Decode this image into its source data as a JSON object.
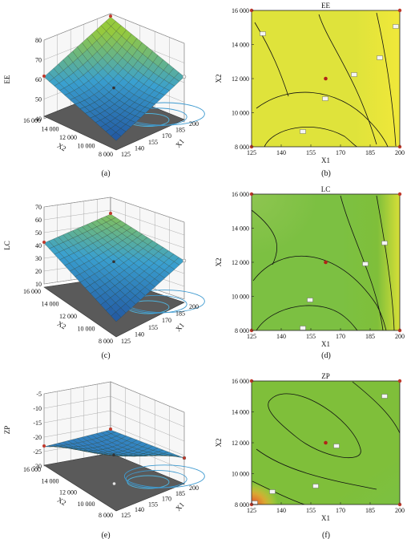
{
  "figure": {
    "panels": [
      "(a)",
      "(b)",
      "(c)",
      "(d)",
      "(e)",
      "(f)"
    ]
  },
  "chart_data": [
    {
      "id": "a",
      "type": "surface3d",
      "panel_label": "(a)",
      "zlabel": "EE",
      "xlabel": "X1",
      "ylabel": "X2",
      "zticks": [
        "80",
        "70",
        "60",
        "50",
        "40"
      ],
      "xticks": [
        "125",
        "140",
        "155",
        "170",
        "185",
        "200"
      ],
      "yticks": [
        "8 000",
        "10 000",
        "12 000",
        "14 000",
        "16 000"
      ],
      "zlim": [
        35,
        82
      ],
      "xlim": [
        125,
        200
      ],
      "ylim": [
        8000,
        16000
      ],
      "corner_values": {
        "x125_y16000": 60,
        "x200_y16000": 80,
        "x200_y8000": 62,
        "x125_y8000": 42,
        "center": 55
      }
    },
    {
      "id": "b",
      "type": "contour",
      "panel_label": "(b)",
      "title": "EE",
      "xlabel": "X1",
      "ylabel": "X2",
      "xticks": [
        "125",
        "140",
        "155",
        "170",
        "185",
        "200"
      ],
      "yticks": [
        "8 000",
        "10 000",
        "12 000",
        "14 000",
        "16 000"
      ],
      "xlim": [
        125,
        200
      ],
      "ylim": [
        8000,
        16000
      ],
      "center_point": {
        "x": 162.5,
        "y": 12000
      },
      "colors": {
        "low": "#1d4f9c",
        "mid": "#4fb4dd",
        "high": "#7fbf3a",
        "peak": "#e8e23a"
      }
    },
    {
      "id": "c",
      "type": "surface3d",
      "panel_label": "(c)",
      "zlabel": "LC",
      "xlabel": "X1",
      "ylabel": "X2",
      "zticks": [
        "70",
        "60",
        "50",
        "40",
        "30",
        "20",
        "10"
      ],
      "xticks": [
        "125",
        "140",
        "155",
        "170",
        "185",
        "200"
      ],
      "yticks": [
        "8 000",
        "10 000",
        "12 000",
        "14 000",
        "16 000"
      ],
      "zlim": [
        8,
        72
      ],
      "xlim": [
        125,
        200
      ],
      "ylim": [
        8000,
        16000
      ],
      "corner_values": {
        "x125_y16000": 42,
        "x200_y16000": 58,
        "x200_y8000": 40,
        "x125_y8000": 18,
        "center": 38
      }
    },
    {
      "id": "d",
      "type": "contour",
      "panel_label": "(d)",
      "title": "LC",
      "xlabel": "X1",
      "ylabel": "X2",
      "xticks": [
        "125",
        "140",
        "155",
        "170",
        "185",
        "200"
      ],
      "yticks": [
        "8 000",
        "10 000",
        "12 000",
        "14 000",
        "16 000"
      ],
      "xlim": [
        125,
        200
      ],
      "ylim": [
        8000,
        16000
      ],
      "center_point": {
        "x": 162.5,
        "y": 12000
      },
      "colors": {
        "low": "#1d4f9c",
        "mid": "#4fb4dd",
        "high": "#7fbf3a",
        "peak": "#e8e23a"
      }
    },
    {
      "id": "e",
      "type": "surface3d",
      "panel_label": "(e)",
      "zlabel": "ZP",
      "xlabel": "X1",
      "ylabel": "X2",
      "zticks": [
        "-5",
        "-10",
        "-15",
        "-20",
        "-25",
        "-30"
      ],
      "xticks": [
        "125",
        "140",
        "155",
        "170",
        "185",
        "200"
      ],
      "yticks": [
        "8 000",
        "10 000",
        "12 000",
        "14 000",
        "16 000"
      ],
      "zlim": [
        -33,
        -3
      ],
      "xlim": [
        125,
        200
      ],
      "ylim": [
        8000,
        16000
      ],
      "corner_values": {
        "x125_y16000": -25,
        "x200_y16000": -23,
        "x200_y8000": -22,
        "x125_y8000": -6,
        "center": -23
      }
    },
    {
      "id": "f",
      "type": "contour",
      "panel_label": "(f)",
      "title": "ZP",
      "xlabel": "X1",
      "ylabel": "X2",
      "xticks": [
        "125",
        "140",
        "155",
        "170",
        "185",
        "200"
      ],
      "yticks": [
        "8 000",
        "10 000",
        "12 000",
        "14 000",
        "16 000"
      ],
      "xlim": [
        125,
        200
      ],
      "ylim": [
        8000,
        16000
      ],
      "center_point": {
        "x": 162.5,
        "y": 12000
      },
      "colors": {
        "low": "#1d4f9c",
        "mid": "#4fb4dd",
        "high": "#7fbf3a",
        "peak": "#e8402a"
      }
    }
  ]
}
